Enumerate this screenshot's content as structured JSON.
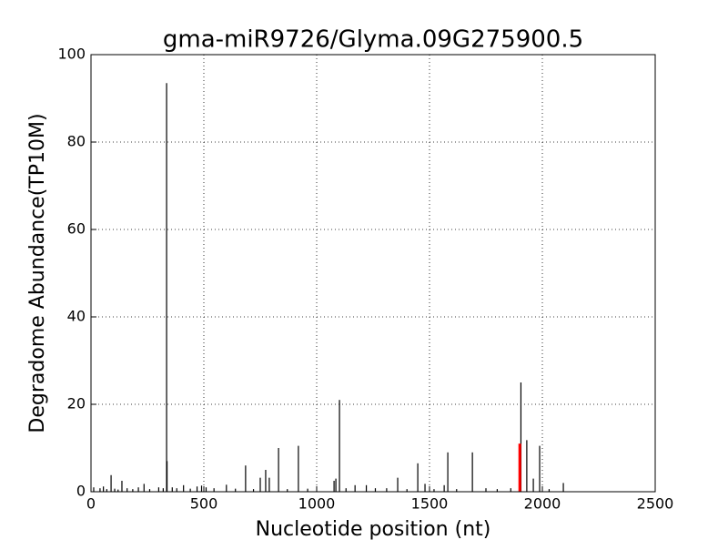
{
  "chart_data": {
    "type": "stem",
    "title": "gma-miR9726/Glyma.09G275900.5",
    "x_label": "Nucleotide position (nt)",
    "y_label": "Degradome Abundance(TP10M)",
    "xlim": [
      0,
      2500
    ],
    "xticks": [
      0,
      500,
      1000,
      1500,
      2000,
      2500
    ],
    "ylim": [
      0,
      100
    ],
    "yticks": [
      0,
      20,
      40,
      60,
      80,
      100
    ],
    "grid": true,
    "series": [
      {
        "color": "#000000",
        "x": [
          12,
          40,
          55,
          70,
          89,
          105,
          120,
          137,
          160,
          185,
          210,
          235,
          260,
          300,
          320,
          335,
          337,
          360,
          380,
          410,
          440,
          470,
          490,
          510,
          545,
          600,
          640,
          685,
          720,
          750,
          774,
          790,
          831,
          870,
          919,
          960,
          1077,
          1085,
          1101,
          1130,
          1170,
          1220,
          1260,
          1310,
          1359,
          1400,
          1448,
          1480,
          1520,
          1565,
          1581,
          1620,
          1690,
          1750,
          1800,
          1860,
          1905,
          1931,
          1960,
          1988,
          2030,
          2093
        ],
        "values": [
          1,
          0.8,
          1.2,
          0.6,
          3.8,
          0.7,
          0.5,
          2.5,
          0.8,
          0.6,
          1,
          1.8,
          0.6,
          1,
          0.8,
          93.5,
          7,
          1,
          0.8,
          1.5,
          0.7,
          1.2,
          1.4,
          1,
          0.8,
          1.6,
          0.7,
          6,
          0.6,
          3.2,
          5,
          3.2,
          10,
          0.6,
          10.5,
          0.7,
          2.5,
          3,
          21,
          0.8,
          1.5,
          1.5,
          0.8,
          0.8,
          3.2,
          0.6,
          6.5,
          1.8,
          0.6,
          1.5,
          9,
          0.6,
          9,
          0.8,
          0.6,
          0.8,
          25,
          11.8,
          3,
          10.5,
          0.6,
          2
        ]
      },
      {
        "color": "#ff0000",
        "x": [
          1900
        ],
        "values": [
          11
        ]
      }
    ]
  }
}
